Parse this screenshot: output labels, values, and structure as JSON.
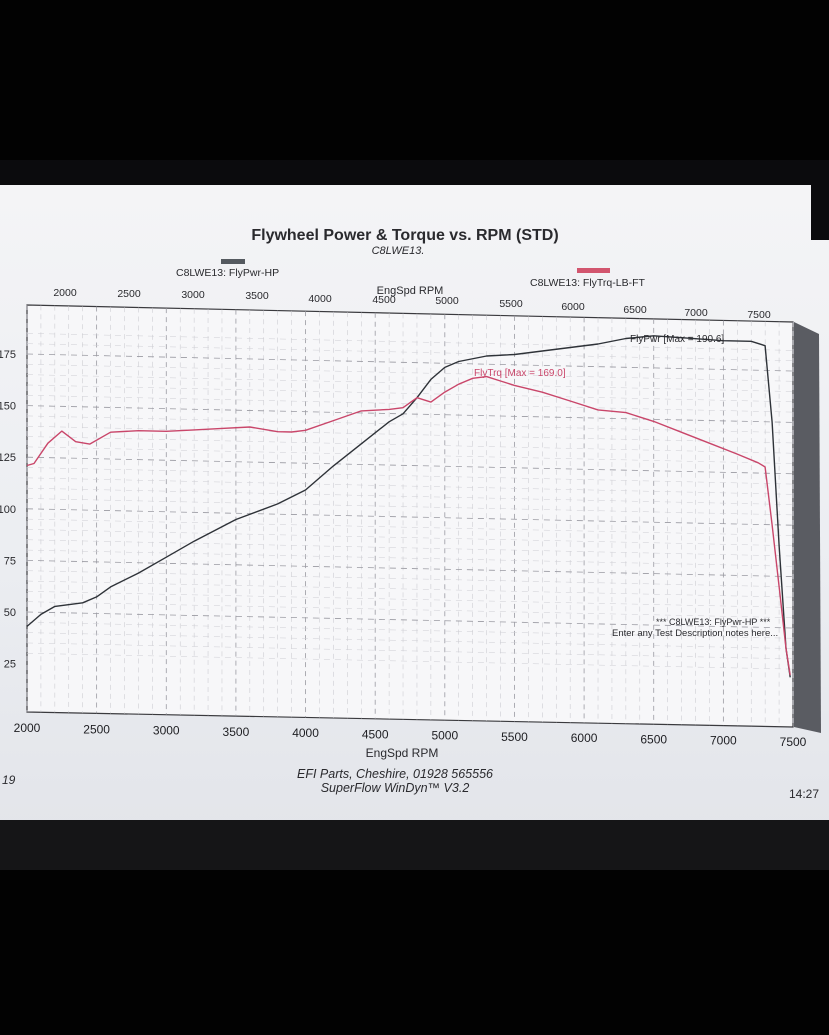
{
  "chart_data": {
    "type": "line",
    "title": "Flywheel Power & Torque vs. RPM (STD)",
    "subtitle": "C8LWE13.",
    "top_axis_label": "EngSpd RPM",
    "xlabel": "EngSpd RPM",
    "xlim": [
      2000,
      7500
    ],
    "ylim": [
      25,
      190
    ],
    "x_ticks": [
      "2000",
      "2500",
      "3000",
      "3500",
      "4000",
      "4500",
      "5000",
      "5500",
      "6000",
      "6500",
      "7000",
      "7500"
    ],
    "y_ticks": [
      "25",
      "50",
      "75",
      "100",
      "125",
      "150",
      "175"
    ],
    "legend": [
      {
        "label": "C8LWE13: FlyPwr-HP",
        "color": "#555a60"
      },
      {
        "label": "C8LWE13: FlyTrq-LB-FT",
        "color": "#d2556e"
      }
    ],
    "series": [
      {
        "name": "C8LWE13: FlyPwr-HP",
        "color": "#2e3238",
        "x": [
          2000,
          2100,
          2200,
          2400,
          2500,
          2600,
          2800,
          3000,
          3200,
          3500,
          3800,
          4000,
          4200,
          4400,
          4600,
          4700,
          4800,
          4900,
          5000,
          5100,
          5300,
          5500,
          5700,
          5900,
          6100,
          6300,
          6500,
          6700,
          7000,
          7200,
          7300,
          7350,
          7400,
          7450,
          7480
        ],
        "y": [
          43,
          49,
          53,
          55,
          58,
          63,
          70,
          78,
          86,
          97,
          105,
          112,
          124,
          135,
          146,
          150,
          158,
          167,
          173,
          176,
          179,
          180,
          182,
          184,
          186,
          189,
          190.6,
          190,
          189,
          189,
          187,
          150,
          90,
          40,
          26
        ]
      },
      {
        "name": "C8LWE13: FlyTrq-LB-FT",
        "color": "#c9466a",
        "x": [
          2000,
          2050,
          2150,
          2250,
          2350,
          2450,
          2600,
          2800,
          3000,
          3200,
          3400,
          3600,
          3800,
          3900,
          4000,
          4200,
          4400,
          4600,
          4700,
          4800,
          4900,
          5000,
          5100,
          5200,
          5300,
          5400,
          5500,
          5700,
          5900,
          6100,
          6300,
          6500,
          6700,
          6900,
          7100,
          7250,
          7300,
          7350,
          7400,
          7450,
          7480
        ],
        "y": [
          121,
          122,
          132,
          138,
          133,
          132,
          138,
          139,
          139,
          140,
          141,
          142,
          140,
          140,
          141,
          146,
          151,
          152,
          153,
          158,
          156,
          161,
          165,
          168,
          169,
          167,
          165,
          162,
          158,
          154,
          153,
          149,
          144,
          139,
          134,
          130,
          128,
          100,
          70,
          40,
          27
        ]
      }
    ],
    "annotations": [
      "FlyPwr [Max = 190.6]",
      "FlyTrq [Max = 169.0]",
      "*** C8LWE13: FlyPwr-HP ***",
      "Enter any Test Description notes here..."
    ]
  },
  "footer": {
    "line1": "EFI Parts, Cheshire, 01928 565556",
    "line2": "SuperFlow WinDyn™ V3.2",
    "left_fragment": "19",
    "time_fragment": "14:27"
  }
}
